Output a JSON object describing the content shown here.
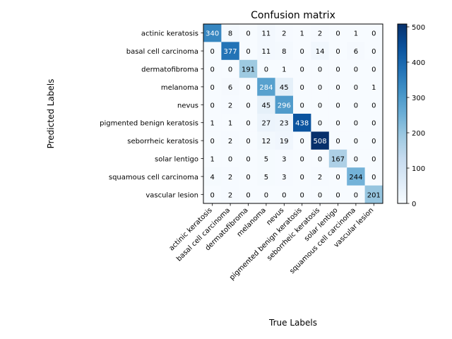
{
  "chart_data": {
    "type": "heatmap",
    "title": "Confusion matrix",
    "xlabel": "True Labels",
    "ylabel": "Predicted Labels",
    "labels": [
      "actinic keratosis",
      "basal cell carcinoma",
      "dermatofibroma",
      "melanoma",
      "nevus",
      "pigmented benign keratosis",
      "seborrheic keratosis",
      "solar lentigo",
      "squamous cell carcinoma",
      "vascular lesion"
    ],
    "matrix": [
      [
        340,
        8,
        0,
        11,
        2,
        1,
        2,
        0,
        1,
        0
      ],
      [
        0,
        377,
        0,
        11,
        8,
        0,
        14,
        0,
        6,
        0
      ],
      [
        0,
        0,
        191,
        0,
        1,
        0,
        0,
        0,
        0,
        0
      ],
      [
        0,
        6,
        0,
        284,
        45,
        0,
        0,
        0,
        0,
        1
      ],
      [
        0,
        2,
        0,
        45,
        296,
        0,
        0,
        0,
        0,
        0
      ],
      [
        1,
        1,
        0,
        27,
        23,
        438,
        0,
        0,
        0,
        0
      ],
      [
        0,
        2,
        0,
        12,
        19,
        0,
        508,
        0,
        0,
        0
      ],
      [
        1,
        0,
        0,
        5,
        3,
        0,
        0,
        167,
        0,
        0
      ],
      [
        4,
        2,
        0,
        5,
        3,
        0,
        2,
        0,
        244,
        0
      ],
      [
        0,
        2,
        0,
        0,
        0,
        0,
        0,
        0,
        0,
        201
      ]
    ],
    "colormap": "Blues",
    "vmin": 0,
    "vmax": 508,
    "colorbar_ticks": [
      0,
      100,
      200,
      300,
      400,
      500
    ],
    "x_tick_rotation_deg": 45
  }
}
